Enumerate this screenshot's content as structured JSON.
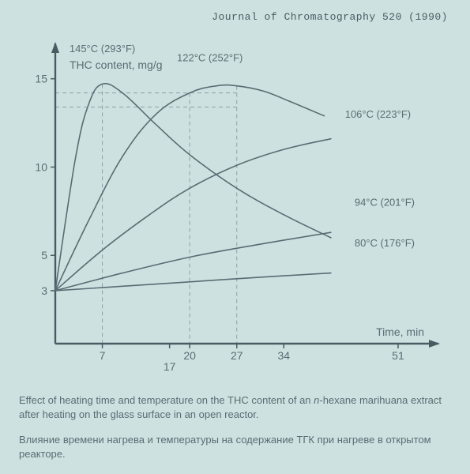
{
  "journal_ref": "Journal of Chromatography 520 (1990)",
  "chart": {
    "type": "line",
    "y_axis_label": "THC content, mg/g",
    "x_axis_label": "Time, min",
    "background_color": "#cde2e0",
    "axis_color": "#4a5a62",
    "tick_color": "#5a6b73",
    "gridline_color": "#8aa0a5",
    "text_color": "#5a6b73",
    "line_color": "#5a6b73",
    "line_width": 1.6,
    "axis_width": 2.4,
    "label_fontsize": 14,
    "tick_fontsize": 14,
    "series_label_fontsize": 13,
    "xlim": [
      0,
      57
    ],
    "ylim": [
      0,
      17
    ],
    "y_ticks": [
      3,
      5,
      10,
      15
    ],
    "x_ticks": [
      7,
      17,
      20,
      27,
      34,
      51
    ],
    "x_tick_labels": {
      "7": "7",
      "17": "17",
      "20": "20",
      "27": "27",
      "34": "34",
      "51": "51"
    },
    "vertical_guides": [
      7,
      20,
      27
    ],
    "horizontal_guides": [
      14.2,
      13.4
    ],
    "series": [
      {
        "label": "145°C (293°F)",
        "label_pos": {
          "x": 7,
          "y": 16.5,
          "anchor": "middle"
        },
        "points": [
          {
            "x": 0,
            "y": 3.0
          },
          {
            "x": 3,
            "y": 10.5
          },
          {
            "x": 5,
            "y": 13.6
          },
          {
            "x": 7,
            "y": 14.7
          },
          {
            "x": 10,
            "y": 14.2
          },
          {
            "x": 15,
            "y": 12.4
          },
          {
            "x": 20,
            "y": 10.7
          },
          {
            "x": 27,
            "y": 8.8
          },
          {
            "x": 34,
            "y": 7.3
          },
          {
            "x": 41,
            "y": 6.0
          }
        ]
      },
      {
        "label": "122°C (252°F)",
        "label_pos": {
          "x": 23,
          "y": 16.0,
          "anchor": "middle"
        },
        "points": [
          {
            "x": 0,
            "y": 3.0
          },
          {
            "x": 5,
            "y": 7.0
          },
          {
            "x": 10,
            "y": 10.6
          },
          {
            "x": 15,
            "y": 13.0
          },
          {
            "x": 20,
            "y": 14.2
          },
          {
            "x": 24,
            "y": 14.6
          },
          {
            "x": 27,
            "y": 14.6
          },
          {
            "x": 31,
            "y": 14.3
          },
          {
            "x": 35,
            "y": 13.7
          },
          {
            "x": 40,
            "y": 12.9
          }
        ]
      },
      {
        "label": "106°C (223°F)",
        "label_pos": {
          "x": 48,
          "y": 12.8,
          "anchor": "middle"
        },
        "points": [
          {
            "x": 0,
            "y": 3.0
          },
          {
            "x": 7,
            "y": 5.3
          },
          {
            "x": 14,
            "y": 7.3
          },
          {
            "x": 20,
            "y": 8.8
          },
          {
            "x": 27,
            "y": 10.1
          },
          {
            "x": 34,
            "y": 11.0
          },
          {
            "x": 41,
            "y": 11.6
          }
        ]
      },
      {
        "label": "94°C (201°F)",
        "label_pos": {
          "x": 49,
          "y": 7.8,
          "anchor": "middle"
        },
        "points": [
          {
            "x": 0,
            "y": 3.0
          },
          {
            "x": 10,
            "y": 4.0
          },
          {
            "x": 20,
            "y": 4.9
          },
          {
            "x": 30,
            "y": 5.6
          },
          {
            "x": 41,
            "y": 6.3
          }
        ]
      },
      {
        "label": "80°C (176°F)",
        "label_pos": {
          "x": 49,
          "y": 5.5,
          "anchor": "middle"
        },
        "points": [
          {
            "x": 0,
            "y": 3.0
          },
          {
            "x": 10,
            "y": 3.25
          },
          {
            "x": 20,
            "y": 3.5
          },
          {
            "x": 30,
            "y": 3.75
          },
          {
            "x": 41,
            "y": 4.0
          }
        ]
      }
    ]
  },
  "caption_en_a": "Effect of heating time and temperature on the THC content of an ",
  "caption_en_i": "n",
  "caption_en_b": "-hexane marihuana extract after heating on the glass surface in an open reactor.",
  "caption_ru": "Влияние времени нагрева и температуры на содержание ТГК при нагреве в открытом реакторе."
}
